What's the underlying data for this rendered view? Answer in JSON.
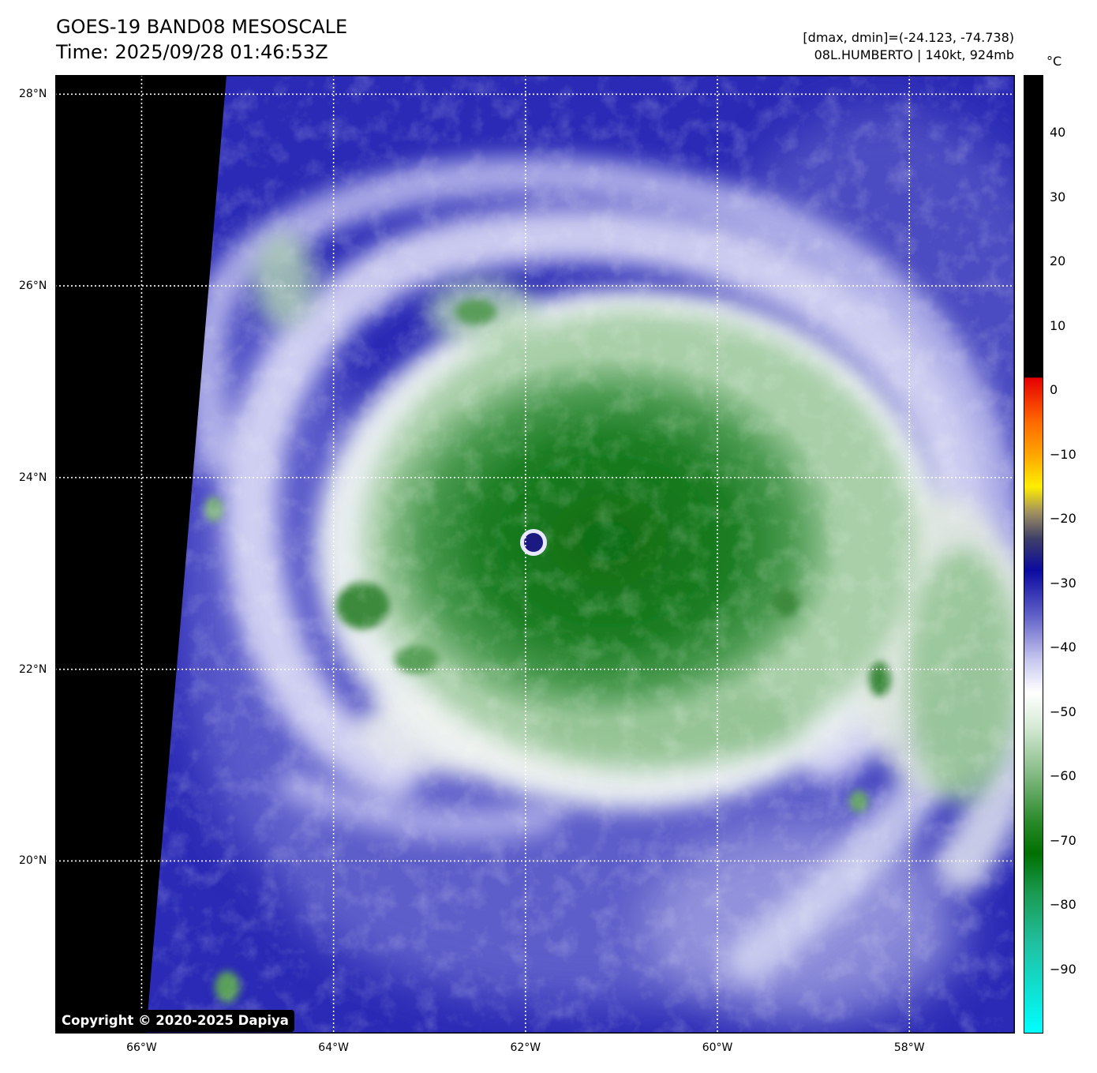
{
  "header": {
    "title_line1": "GOES-19 BAND08 MESOSCALE",
    "title_line2": "Time: 2025/09/28 01:46:53Z",
    "info_line1": "[dmax, dmin]=(-24.123, -74.738)",
    "info_line2": "08L.HUMBERTO | 140kt, 924mb"
  },
  "map": {
    "extent": {
      "lon_min": -66.9,
      "lon_max": -56.9,
      "lat_min": 18.2,
      "lat_max": 28.2
    },
    "lat_ticks": [
      28,
      26,
      24,
      22,
      20
    ],
    "lat_labels": [
      "28°N",
      "26°N",
      "24°N",
      "22°N",
      "20°N"
    ],
    "lon_ticks": [
      -66,
      -64,
      -62,
      -60,
      -58
    ],
    "lon_labels": [
      "66°W",
      "64°W",
      "62°W",
      "60°W",
      "58°W"
    ],
    "storm_center": {
      "lon": -61.9,
      "lat": 23.4
    },
    "colors": {
      "no_data": "#000000",
      "clear_sky_blue": "#2626b4",
      "cloud_white": "#f2f5f2",
      "cold_top_green": "#18791c",
      "eye_navy": "#1a1a80",
      "grid": "#ffffff"
    }
  },
  "colorbar": {
    "unit": "°C",
    "tick_values": [
      40,
      30,
      20,
      10,
      0,
      -10,
      -20,
      -30,
      -40,
      -50,
      -60,
      -70,
      -80,
      -90
    ],
    "tick_labels": [
      "40",
      "30",
      "20",
      "10",
      "0",
      "−10",
      "−20",
      "−30",
      "−40",
      "−50",
      "−60",
      "−70",
      "−80",
      "−90"
    ],
    "range": [
      -100,
      49
    ],
    "color_stops": [
      {
        "temp": 49,
        "color": "#000000"
      },
      {
        "temp": 2,
        "color": "#000000"
      },
      {
        "temp": 1.9,
        "color": "#e60000"
      },
      {
        "temp": -5,
        "color": "#ff6a00"
      },
      {
        "temp": -10,
        "color": "#ffa500"
      },
      {
        "temp": -15,
        "color": "#ffee00"
      },
      {
        "temp": -19,
        "color": "#a09060"
      },
      {
        "temp": -23,
        "color": "#404068"
      },
      {
        "temp": -28,
        "color": "#0a0aa0"
      },
      {
        "temp": -35,
        "color": "#6060c8"
      },
      {
        "temp": -42,
        "color": "#c8c8f0"
      },
      {
        "temp": -47,
        "color": "#ffffff"
      },
      {
        "temp": -52,
        "color": "#d8ecd8"
      },
      {
        "temp": -60,
        "color": "#80b880"
      },
      {
        "temp": -67,
        "color": "#2a8a2a"
      },
      {
        "temp": -72,
        "color": "#007000"
      },
      {
        "temp": -78,
        "color": "#1a9a50"
      },
      {
        "temp": -86,
        "color": "#20c0a0"
      },
      {
        "temp": -100,
        "color": "#00ffff"
      }
    ]
  },
  "footer": {
    "copyright": "Copyright © 2020-2025 Dapiya"
  }
}
